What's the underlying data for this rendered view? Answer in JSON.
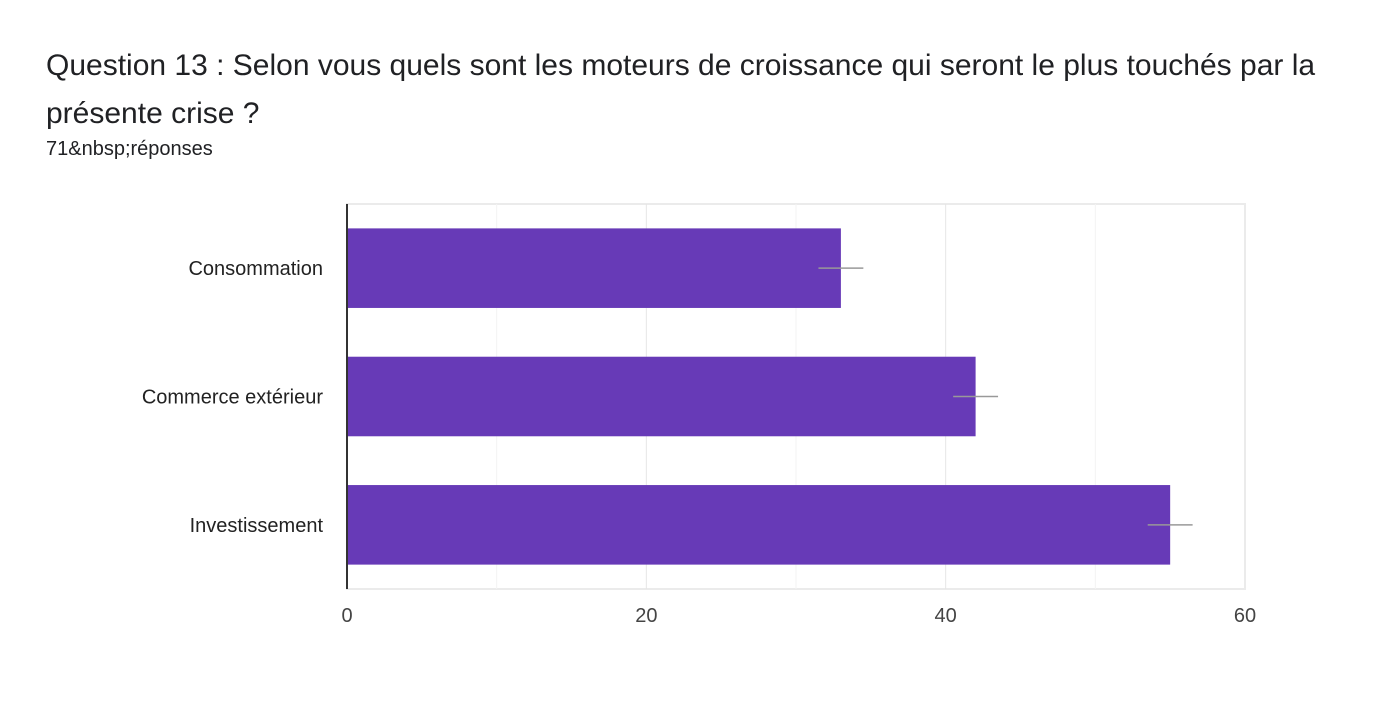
{
  "question": {
    "title": "Question 13 : Selon vous quels sont les moteurs de croissance qui seront le plus touchés par la présente crise ?",
    "responses": "71&nbsp;réponses"
  },
  "chart_data": {
    "type": "bar",
    "orientation": "horizontal",
    "categories": [
      "Consommation",
      "Commerce extérieur",
      "Investissement"
    ],
    "values": [
      33,
      42,
      55
    ],
    "error": [
      1.5,
      1.5,
      1.5
    ],
    "xlim": [
      0,
      60
    ],
    "xticks": [
      0,
      20,
      40,
      60
    ],
    "grid": true,
    "bar_color": "#673ab7",
    "error_color": "#999999"
  }
}
